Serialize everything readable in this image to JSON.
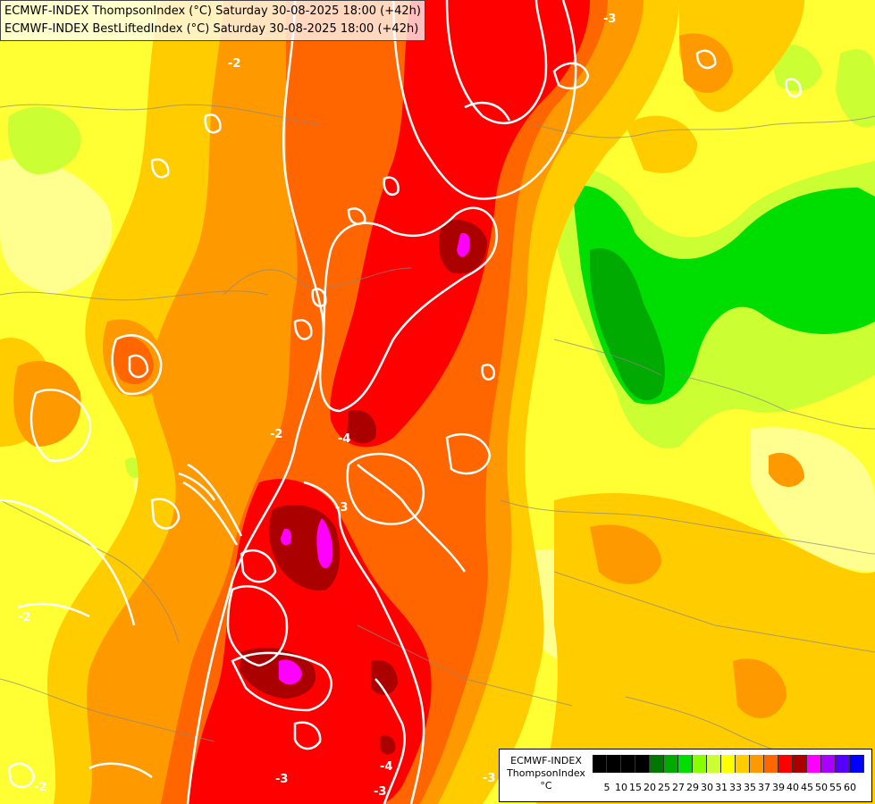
{
  "title": {
    "line1": "ECMWF-INDEX ThompsonIndex (°C) Saturday 30-08-2025 18:00 (+42h)",
    "line2": "ECMWF-INDEX BestLiftedIndex (°C) Saturday 30-08-2025 18:00 (+42h)"
  },
  "legend": {
    "line1": "ECMWF-INDEX",
    "line2": "ThompsonIndex",
    "line3": "°C",
    "ticks": [
      "5",
      "10",
      "15",
      "20",
      "25",
      "27",
      "29",
      "30",
      "31",
      "33",
      "35",
      "37",
      "39",
      "40",
      "45",
      "50",
      "55",
      "60"
    ],
    "colors": [
      "#000000",
      "#000000",
      "#000000",
      "#000000",
      "#007700",
      "#00aa00",
      "#00dd00",
      "#88ff00",
      "#ccff33",
      "#ffff00",
      "#ffcc00",
      "#ff9900",
      "#ff6600",
      "#ff0000",
      "#aa0000",
      "#ff00ff",
      "#aa00ff",
      "#5500ff",
      "#0000ff"
    ]
  },
  "contour_labels": [
    "-2",
    "-3",
    "-4",
    "-3",
    "-2",
    "-2",
    "-3",
    "-3",
    "-2",
    "-3",
    "-4"
  ],
  "colors": {
    "yellow": "#ffff33",
    "light_yellow": "#ffff99",
    "orange_light": "#ffcc00",
    "orange": "#ff9900",
    "orange_dark": "#ff6600",
    "red": "#ff0000",
    "dark_red": "#aa0000",
    "magenta": "#ff00ff",
    "green_light": "#ccff33",
    "green": "#00dd00",
    "green_dark": "#00aa00"
  }
}
